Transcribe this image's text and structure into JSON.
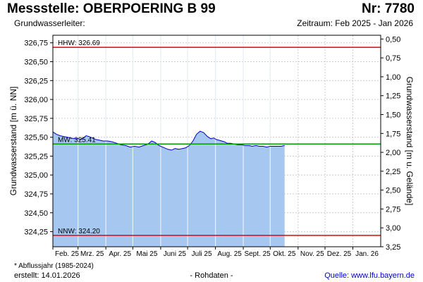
{
  "header": {
    "title": "Messstelle: OBERPOERING B 99",
    "number": "Nr: 7780",
    "aquifer": "Grundwasserleiter:",
    "period": "Zeitraum: Feb 2025 - Jan 2026"
  },
  "footer": {
    "footnote": "* Abflussjahr (1985-2024)",
    "created": "erstellt:  14.01.2026",
    "raw_data": "- Rohdaten -",
    "source": "Quelle: www.lfu.bayern.de"
  },
  "chart_data": {
    "type": "area",
    "ylabel": "Grundwasserstand [m ü. NN]",
    "y2label": "Grundwasserstand [m u. Gelände]",
    "ylim": [
      324.05,
      326.85
    ],
    "y2lim": [
      3.25,
      0.45
    ],
    "yticks": [
      "326,75",
      "326,50",
      "326,25",
      "326,00",
      "325,75",
      "325,50",
      "325,25",
      "325,00",
      "324,75",
      "324,50",
      "324,25"
    ],
    "yticks_values": [
      326.75,
      326.5,
      326.25,
      326.0,
      325.75,
      325.5,
      325.25,
      325.0,
      324.75,
      324.5,
      324.25
    ],
    "y2ticks": [
      "0,50",
      "0,75",
      "1,00",
      "1,25",
      "1,50",
      "1,75",
      "2,00",
      "2,25",
      "2,50",
      "2,75",
      "3,00",
      "3,25"
    ],
    "y2ticks_values": [
      0.5,
      0.75,
      1.0,
      1.25,
      1.5,
      1.75,
      2.0,
      2.25,
      2.5,
      2.75,
      3.0,
      3.25
    ],
    "xticks": [
      "Feb. 25",
      "Mrz. 25",
      "Apr. 25",
      "Mai 25",
      "Juni 25",
      "Juli 25",
      "Aug. 25",
      "Sept. 25",
      "Okt. 25",
      "Nov. 25",
      "Dez. 25",
      "Jan. 26"
    ],
    "xticks_dates": [
      "2025-02-01",
      "2025-03-01",
      "2025-04-01",
      "2025-05-01",
      "2025-06-01",
      "2025-07-01",
      "2025-08-01",
      "2025-09-01",
      "2025-10-01",
      "2025-11-01",
      "2025-12-01",
      "2026-01-01"
    ],
    "xlim": [
      "2025-02-01",
      "2026-01-31"
    ],
    "grid": true,
    "reference_lines": [
      {
        "label": "HHW: 326.69",
        "value": 326.69,
        "color": "#ee0000"
      },
      {
        "label": "MW: 325.41",
        "value": 325.41,
        "color": "#009900"
      },
      {
        "label": "NNW: 324.20",
        "value": 324.2,
        "color": "#ee0000"
      }
    ],
    "series": [
      {
        "color": "#0000cc",
        "fill": "#a6c8f0",
        "x": [
          "2025-02-01",
          "2025-02-05",
          "2025-02-09",
          "2025-02-13",
          "2025-02-17",
          "2025-02-21",
          "2025-02-25",
          "2025-03-01",
          "2025-03-04",
          "2025-03-07",
          "2025-03-10",
          "2025-03-13",
          "2025-03-17",
          "2025-03-21",
          "2025-03-25",
          "2025-03-29",
          "2025-04-03",
          "2025-04-08",
          "2025-04-13",
          "2025-04-18",
          "2025-04-23",
          "2025-04-28",
          "2025-05-03",
          "2025-05-08",
          "2025-05-13",
          "2025-05-18",
          "2025-05-22",
          "2025-05-26",
          "2025-05-29",
          "2025-06-01",
          "2025-06-05",
          "2025-06-09",
          "2025-06-13",
          "2025-06-17",
          "2025-06-21",
          "2025-06-25",
          "2025-06-29",
          "2025-07-03",
          "2025-07-07",
          "2025-07-11",
          "2025-07-15",
          "2025-07-19",
          "2025-07-23",
          "2025-07-27",
          "2025-07-30",
          "2025-08-02",
          "2025-08-05",
          "2025-08-08",
          "2025-08-11",
          "2025-08-14",
          "2025-08-18",
          "2025-08-22",
          "2025-08-26",
          "2025-08-30",
          "2025-09-03",
          "2025-09-07",
          "2025-09-11",
          "2025-09-15",
          "2025-09-19",
          "2025-09-23",
          "2025-09-27",
          "2025-10-01",
          "2025-10-05",
          "2025-10-09",
          "2025-10-13",
          "2025-10-17"
        ],
        "values": [
          325.57,
          325.54,
          325.52,
          325.51,
          325.5,
          325.49,
          325.48,
          325.48,
          325.47,
          325.49,
          325.52,
          325.51,
          325.49,
          325.47,
          325.46,
          325.45,
          325.45,
          325.44,
          325.42,
          325.4,
          325.39,
          325.37,
          325.38,
          325.37,
          325.39,
          325.41,
          325.45,
          325.43,
          325.4,
          325.38,
          325.36,
          325.34,
          325.33,
          325.35,
          325.34,
          325.35,
          325.36,
          325.39,
          325.45,
          325.54,
          325.58,
          325.56,
          325.51,
          325.48,
          325.49,
          325.47,
          325.46,
          325.45,
          325.44,
          325.42,
          325.42,
          325.41,
          325.4,
          325.4,
          325.39,
          325.39,
          325.38,
          325.39,
          325.38,
          325.38,
          325.37,
          325.38,
          325.38,
          325.38,
          325.38,
          325.39
        ]
      }
    ]
  }
}
